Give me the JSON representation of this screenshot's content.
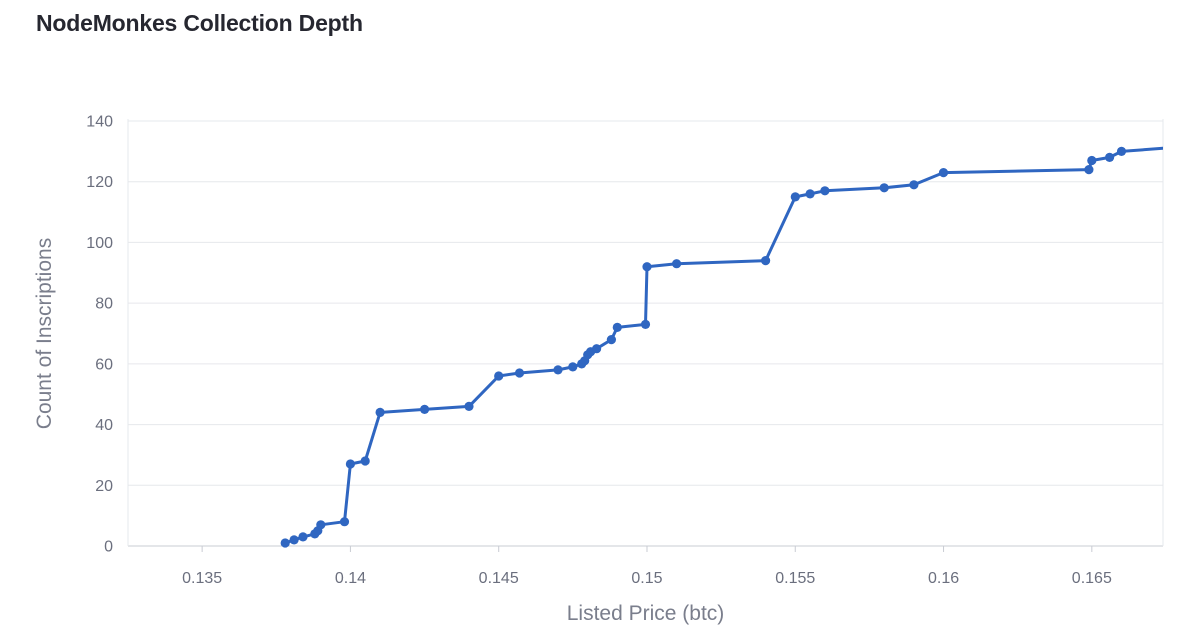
{
  "page": {
    "title": "NodeMonkes Collection Depth"
  },
  "chart_data": {
    "type": "line",
    "title": "NodeMonkes Collection Depth",
    "xlabel": "Listed Price (btc)",
    "ylabel": "Count of Inscriptions",
    "xlim": [
      0.1325,
      0.1674
    ],
    "ylim": [
      0,
      140
    ],
    "xticks": [
      0.135,
      0.14,
      0.145,
      0.15,
      0.155,
      0.16,
      0.165
    ],
    "xtick_labels": [
      "0.135",
      "0.14",
      "0.145",
      "0.15",
      "0.155",
      "0.16",
      "0.165"
    ],
    "yticks": [
      0,
      20,
      40,
      60,
      80,
      100,
      120,
      140
    ],
    "ytick_labels": [
      "0",
      "20",
      "40",
      "60",
      "80",
      "100",
      "120",
      "140"
    ],
    "grid": true,
    "color": "#2f66c1",
    "series": [
      {
        "x": [
          0.1378,
          0.1381,
          0.1384,
          0.1388,
          0.1389,
          0.139,
          0.1398,
          0.14,
          0.1405,
          0.141,
          0.1425,
          0.144,
          0.145,
          0.1457,
          0.147,
          0.1475,
          0.1478,
          0.1479,
          0.148,
          0.1481,
          0.1483,
          0.1488,
          0.149,
          0.14995,
          0.15,
          0.151,
          0.154,
          0.155,
          0.1555,
          0.156,
          0.158,
          0.159,
          0.16,
          0.1649,
          0.165,
          0.1656,
          0.166,
          0.1674
        ],
        "y": [
          1,
          2,
          3,
          4,
          5,
          7,
          8,
          27,
          28,
          44,
          45,
          46,
          56,
          57,
          58,
          59,
          60,
          61,
          63,
          64,
          65,
          68,
          72,
          73,
          92,
          93,
          94,
          115,
          116,
          117,
          118,
          119,
          123,
          124,
          127,
          128,
          130,
          131
        ],
        "markers": [
          true,
          true,
          true,
          true,
          true,
          true,
          true,
          true,
          true,
          true,
          true,
          true,
          true,
          true,
          true,
          true,
          true,
          true,
          true,
          true,
          true,
          true,
          true,
          true,
          true,
          true,
          true,
          true,
          true,
          true,
          true,
          true,
          true,
          true,
          true,
          true,
          true,
          false
        ]
      }
    ]
  }
}
